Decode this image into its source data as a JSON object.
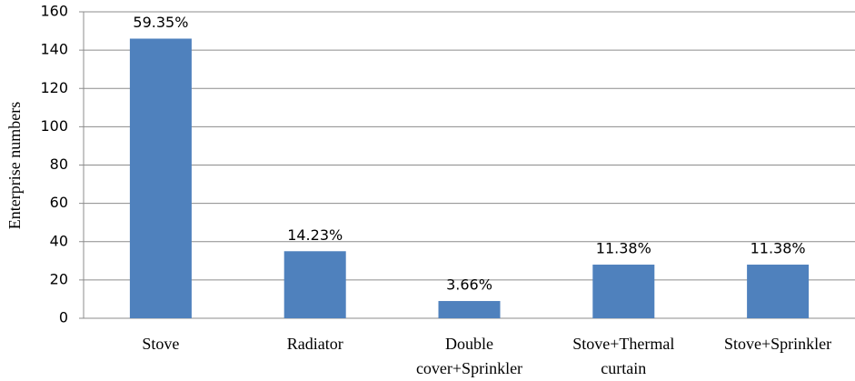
{
  "chart_data": {
    "type": "bar",
    "y_label": "Enterprise numbers",
    "categories": [
      "Stove",
      "Radiator",
      "Double cover+Sprinkler",
      "Stove+Thermal curtain",
      "Stove+Sprinkler"
    ],
    "values": [
      146,
      35,
      9,
      28,
      28
    ],
    "percent_labels": [
      "59.35%",
      "14.23%",
      "3.66%",
      "11.38%",
      "11.38%"
    ],
    "color": "#4f81bd",
    "ylim": [
      0,
      160
    ],
    "yticks": [
      0,
      20,
      40,
      60,
      80,
      100,
      120,
      140,
      160
    ],
    "grid": true
  }
}
